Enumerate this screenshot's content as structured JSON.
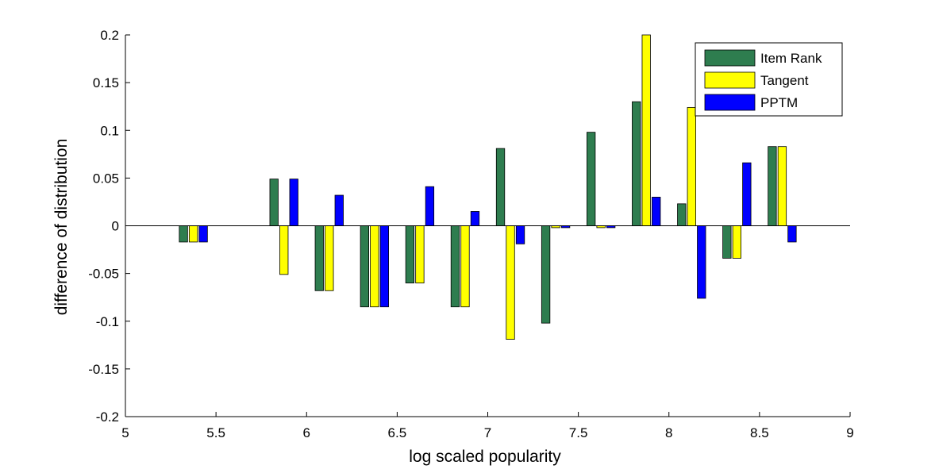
{
  "chart_data": {
    "type": "bar",
    "title": "",
    "xlabel": "log scaled popularity",
    "ylabel": "difference of distribution",
    "xlim": [
      5,
      9
    ],
    "ylim": [
      -0.2,
      0.2
    ],
    "x_ticks": [
      "5",
      "5.5",
      "6",
      "6.5",
      "7",
      "7.5",
      "8",
      "8.5",
      "9"
    ],
    "y_ticks": [
      "-0.2",
      "-0.15",
      "-0.1",
      "-0.05",
      "0",
      "0.05",
      "0.1",
      "0.15",
      "0.2"
    ],
    "grid": false,
    "legend_position": "top-right",
    "x": [
      5.375,
      5.875,
      6.125,
      6.375,
      6.625,
      6.875,
      7.125,
      7.375,
      7.625,
      7.875,
      8.125,
      8.375,
      8.625
    ],
    "series": [
      {
        "name": "Item Rank",
        "color": "#2e7d4f",
        "values": [
          -0.017,
          0.049,
          -0.068,
          -0.085,
          -0.06,
          -0.085,
          0.081,
          -0.102,
          0.098,
          0.13,
          0.023,
          -0.034,
          0.083
        ]
      },
      {
        "name": "Tangent",
        "color": "#ffff00",
        "values": [
          -0.017,
          -0.051,
          -0.068,
          -0.085,
          -0.06,
          -0.085,
          -0.119,
          -0.002,
          -0.002,
          0.2,
          0.124,
          -0.034,
          0.083
        ]
      },
      {
        "name": "PPTM",
        "color": "#0000ff",
        "values": [
          -0.017,
          0.049,
          0.032,
          -0.085,
          0.041,
          0.015,
          -0.019,
          -0.002,
          -0.002,
          0.03,
          -0.076,
          0.066,
          -0.017
        ]
      }
    ]
  }
}
